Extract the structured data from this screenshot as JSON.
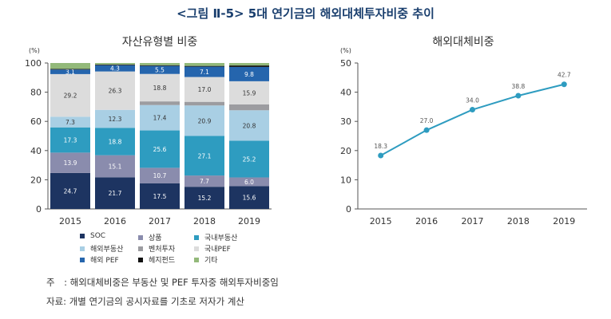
{
  "figure_title": "<그림 Ⅱ-5> 5대 연기금의 해외대체투자비중 추이",
  "notes": {
    "note1": "주　: 해외대체비중은 부동산 및 PEF 투자중 해외투자비중임",
    "note2": "자료: 개별 연기금의 공시자료를 기초로 저자가 계산"
  },
  "chart_data": [
    {
      "type": "bar",
      "stacked": true,
      "title": "자산유형별 비중",
      "unit_label": "(%)",
      "categories": [
        "2015",
        "2016",
        "2017",
        "2018",
        "2019"
      ],
      "ylim": [
        0,
        100
      ],
      "yticks": [
        0,
        20,
        40,
        60,
        80,
        100
      ],
      "grid": false,
      "legend_position": "bottom",
      "series": [
        {
          "name": "SOC",
          "color": "#1d3461",
          "values": [
            24.7,
            21.7,
            17.5,
            15.2,
            15.6
          ],
          "labels": [
            "24.7",
            "21.7",
            "17.5",
            "15.2",
            "15.6"
          ]
        },
        {
          "name": "상품",
          "color": "#8a8cad",
          "values": [
            13.9,
            15.1,
            10.7,
            7.7,
            6.0
          ],
          "labels": [
            "13.9",
            "15.1",
            "10.7",
            "7.7",
            "6.0"
          ]
        },
        {
          "name": "국내부동산",
          "color": "#2e9cc0",
          "values": [
            17.3,
            18.8,
            25.6,
            27.1,
            25.2
          ],
          "labels": [
            "17.3",
            "18.8",
            "25.6",
            "27.1",
            "25.2"
          ]
        },
        {
          "name": "해외부동산",
          "color": "#a9cfe4",
          "values": [
            7.3,
            12.3,
            17.4,
            20.9,
            20.8
          ],
          "labels": [
            "7.3",
            "12.3",
            "17.4",
            "20.9",
            "20.8"
          ]
        },
        {
          "name": "벤처투자",
          "color": "#9c9ca0",
          "values": [
            0,
            0,
            2.5,
            2.5,
            4.0
          ],
          "labels": [
            "",
            "",
            "",
            "",
            ""
          ]
        },
        {
          "name": "국내PEF",
          "color": "#dcdcdc",
          "values": [
            29.2,
            26.3,
            18.8,
            17.0,
            15.9
          ],
          "labels": [
            "29.2",
            "26.3",
            "18.8",
            "17.0",
            "15.9"
          ]
        },
        {
          "name": "해외 PEF",
          "color": "#2565ad",
          "values": [
            3.1,
            4.3,
            5.5,
            7.1,
            9.8
          ],
          "labels": [
            "3.1",
            "4.3",
            "5.5",
            "7.1",
            "9.8"
          ]
        },
        {
          "name": "헤지펀드",
          "color": "#111111",
          "values": [
            0.5,
            0.5,
            0.5,
            0.5,
            1.0
          ],
          "labels": [
            "",
            "",
            "",
            "",
            ""
          ]
        },
        {
          "name": "기타",
          "color": "#93b97a",
          "values": [
            4.0,
            1.0,
            1.5,
            2.0,
            1.7
          ],
          "labels": [
            "",
            "",
            "",
            "",
            ""
          ]
        }
      ]
    },
    {
      "type": "line",
      "title": "해외대체비중",
      "unit_label": "(%)",
      "categories": [
        "2015",
        "2016",
        "2017",
        "2018",
        "2019"
      ],
      "values": [
        18.3,
        27.0,
        34.0,
        38.8,
        42.7
      ],
      "labels": [
        "18.3",
        "27.0",
        "34.0",
        "38.8",
        "42.7"
      ],
      "ylim": [
        0,
        50
      ],
      "yticks": [
        0,
        10,
        20,
        30,
        40,
        50
      ],
      "grid": false,
      "color": "#2e9cc0"
    }
  ]
}
